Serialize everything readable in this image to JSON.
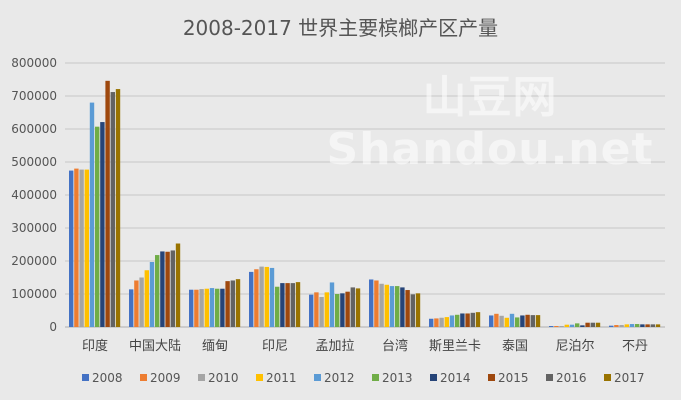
{
  "chart_data": {
    "type": "bar",
    "title": "2008-2017 世界主要槟榔产区产量",
    "categories": [
      "印度",
      "中国大陆",
      "缅甸",
      "印尼",
      "孟加拉",
      "台湾",
      "斯里兰卡",
      "泰国",
      "尼泊尔",
      "不丹"
    ],
    "ylim": [
      0,
      800000
    ],
    "yticks": [
      "0",
      "100000",
      "200000",
      "300000",
      "400000",
      "500000",
      "600000",
      "700000",
      "800000"
    ],
    "grid": true,
    "legend": "bottom",
    "series": [
      {
        "name": "2008",
        "color": "#4472C4",
        "values": [
          474000,
          114000,
          113000,
          167000,
          98000,
          144000,
          25000,
          35000,
          3000,
          4000
        ]
      },
      {
        "name": "2009",
        "color": "#ED7D31",
        "values": [
          480000,
          141000,
          113000,
          175000,
          105000,
          141000,
          26000,
          40000,
          3000,
          6000
        ]
      },
      {
        "name": "2010",
        "color": "#A5A5A5",
        "values": [
          477000,
          150000,
          115000,
          183000,
          91000,
          131000,
          28000,
          34000,
          3000,
          6000
        ]
      },
      {
        "name": "2011",
        "color": "#FFC000",
        "values": [
          477000,
          172000,
          116000,
          182000,
          105000,
          128000,
          30000,
          28000,
          7000,
          8000
        ]
      },
      {
        "name": "2012",
        "color": "#5B9BD5",
        "values": [
          680000,
          197000,
          118000,
          179000,
          135000,
          124000,
          35000,
          40000,
          7000,
          9000
        ]
      },
      {
        "name": "2013",
        "color": "#70AD47",
        "values": [
          607000,
          218000,
          116000,
          122000,
          100000,
          124000,
          37000,
          29000,
          11000,
          9000
        ]
      },
      {
        "name": "2014",
        "color": "#264478",
        "values": [
          621000,
          229000,
          116000,
          133000,
          102000,
          120000,
          41000,
          35000,
          5000,
          8000
        ]
      },
      {
        "name": "2015",
        "color": "#9E480E",
        "values": [
          746000,
          228000,
          139000,
          133000,
          107000,
          112000,
          41000,
          37000,
          13000,
          8000
        ]
      },
      {
        "name": "2016",
        "color": "#636363",
        "values": [
          712000,
          232000,
          141000,
          133000,
          120000,
          99000,
          43000,
          36000,
          13000,
          8000
        ]
      },
      {
        "name": "2017",
        "color": "#997300",
        "values": [
          721000,
          253000,
          145000,
          136000,
          117000,
          102000,
          45000,
          36000,
          13000,
          8000
        ]
      }
    ]
  },
  "watermark": "山豆网 Shandou.net"
}
